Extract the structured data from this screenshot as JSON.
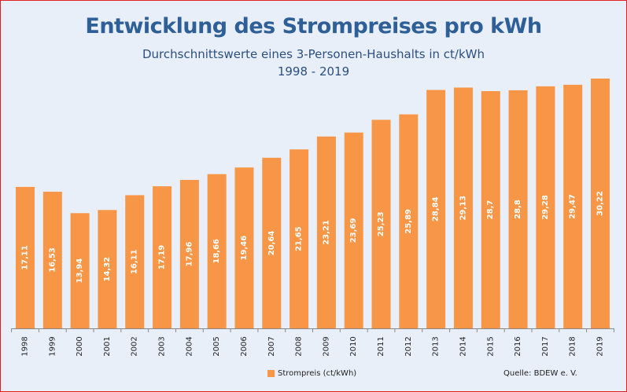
{
  "chart_data": {
    "type": "bar",
    "title": "Entwicklung des Strompreises pro kWh",
    "subtitle": "Durchschnittswerte eines 3-Personen-Haushalts in ct/kWh",
    "period": "1998 - 2019",
    "categories": [
      "1998",
      "1999",
      "2000",
      "2001",
      "2002",
      "2003",
      "2004",
      "2005",
      "2006",
      "2007",
      "2008",
      "2009",
      "2010",
      "2011",
      "2012",
      "2013",
      "2014",
      "2015",
      "2016",
      "2017",
      "2018",
      "2019"
    ],
    "series": [
      {
        "name": "Strompreis (ct/kWh)",
        "values": [
          17.11,
          16.53,
          13.94,
          14.32,
          16.11,
          17.19,
          17.96,
          18.66,
          19.46,
          20.64,
          21.65,
          23.21,
          23.69,
          25.23,
          25.89,
          28.84,
          29.13,
          28.7,
          28.8,
          29.28,
          29.47,
          30.22
        ]
      }
    ],
    "data_labels": [
      "17,11",
      "16,53",
      "13,94",
      "14,32",
      "16,11",
      "17,19",
      "17,96",
      "18,66",
      "19,46",
      "20,64",
      "21,65",
      "23,21",
      "23,69",
      "25,23",
      "25,89",
      "28,84",
      "29,13",
      "28,7",
      "28,8",
      "29,28",
      "29,47",
      "30,22"
    ],
    "ylim": [
      0,
      30.22
    ],
    "grid": false,
    "legend_position": "bottom",
    "source": "Quelle: BDEW e. V.",
    "colors": {
      "bar": "#f79646",
      "title": "#2e5f96",
      "background": "#e9eff9",
      "border": "#e02020"
    }
  }
}
